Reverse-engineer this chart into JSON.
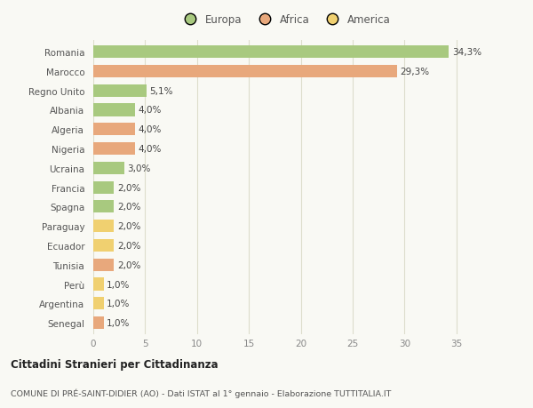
{
  "categories": [
    "Romania",
    "Marocco",
    "Regno Unito",
    "Albania",
    "Algeria",
    "Nigeria",
    "Ucraina",
    "Francia",
    "Spagna",
    "Paraguay",
    "Ecuador",
    "Tunisia",
    "Perù",
    "Argentina",
    "Senegal"
  ],
  "values": [
    34.3,
    29.3,
    5.1,
    4.0,
    4.0,
    4.0,
    3.0,
    2.0,
    2.0,
    2.0,
    2.0,
    2.0,
    1.0,
    1.0,
    1.0
  ],
  "labels": [
    "34,3%",
    "29,3%",
    "5,1%",
    "4,0%",
    "4,0%",
    "4,0%",
    "3,0%",
    "2,0%",
    "2,0%",
    "2,0%",
    "2,0%",
    "2,0%",
    "1,0%",
    "1,0%",
    "1,0%"
  ],
  "continent": [
    "Europa",
    "Africa",
    "Europa",
    "Europa",
    "Africa",
    "Africa",
    "Europa",
    "Europa",
    "Europa",
    "America",
    "America",
    "Africa",
    "America",
    "America",
    "Africa"
  ],
  "colors": {
    "Europa": "#a8c97f",
    "Africa": "#e8a87c",
    "America": "#f0d070"
  },
  "title1": "Cittadini Stranieri per Cittadinanza",
  "title2": "COMUNE DI PRÉ-SAINT-DIDIER (AO) - Dati ISTAT al 1° gennaio - Elaborazione TUTTITALIA.IT",
  "xlim": [
    0,
    37
  ],
  "xticks": [
    0,
    5,
    10,
    15,
    20,
    25,
    30,
    35
  ],
  "bg_color": "#f9f9f4",
  "grid_color": "#ddddcc",
  "bar_height": 0.65
}
